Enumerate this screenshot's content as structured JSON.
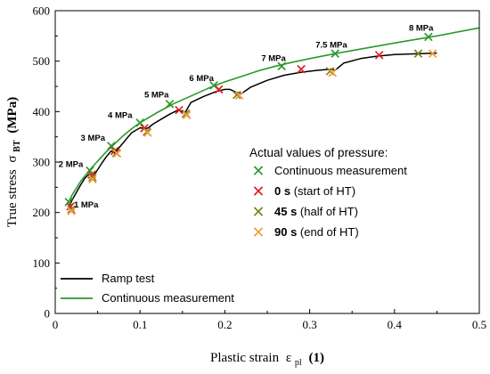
{
  "chart_data": {
    "type": "line",
    "xlabel": "Plastic strain",
    "xlabel_symbol": "ε",
    "xlabel_sub": "pl",
    "xlabel_unit": "(1)",
    "ylabel": "True stress",
    "ylabel_symbol": "σ",
    "ylabel_sub": "BT",
    "ylabel_unit": "(MPa)",
    "xlim": [
      0,
      0.5
    ],
    "ylim": [
      0,
      600
    ],
    "xticks": [
      0,
      0.1,
      0.2,
      0.3,
      0.4,
      0.5
    ],
    "xtick_labels": [
      "0",
      "0.1",
      "0.2",
      "0.3",
      "0.4",
      "0.5"
    ],
    "yticks": [
      0,
      100,
      200,
      300,
      400,
      500,
      600
    ],
    "ytick_labels": [
      "0",
      "100",
      "200",
      "300",
      "400",
      "500",
      "600"
    ],
    "colors": {
      "ramp": "#000000",
      "continuous": "#2a9a2a",
      "cont_marker": "#2e9a2e",
      "start": "#e02020",
      "half": "#7f7f22",
      "end": "#f59a3c"
    },
    "series": [
      {
        "name": "Ramp test",
        "kind": "line",
        "color": "#000000",
        "x": [
          0.016,
          0.02,
          0.025,
          0.03,
          0.035,
          0.041,
          0.045,
          0.05,
          0.055,
          0.06,
          0.066,
          0.07,
          0.075,
          0.08,
          0.085,
          0.09,
          0.1,
          0.106,
          0.11,
          0.115,
          0.125,
          0.135,
          0.145,
          0.15,
          0.153,
          0.16,
          0.175,
          0.19,
          0.2,
          0.206,
          0.214,
          0.22,
          0.23,
          0.25,
          0.27,
          0.29,
          0.31,
          0.325,
          0.33,
          0.34,
          0.36,
          0.38,
          0.4,
          0.43,
          0.45
        ],
        "y": [
          210,
          225,
          240,
          255,
          268,
          278,
          272,
          285,
          298,
          310,
          322,
          318,
          328,
          338,
          348,
          358,
          368,
          366,
          368,
          375,
          385,
          395,
          403,
          400,
          398,
          418,
          430,
          440,
          444,
          444,
          438,
          436,
          448,
          462,
          472,
          478,
          482,
          484,
          482,
          496,
          505,
          510,
          513,
          515,
          516
        ]
      },
      {
        "name": "Continuous measurement",
        "kind": "line",
        "color": "#2a9a2a",
        "x": [
          0.015,
          0.02,
          0.03,
          0.04,
          0.05,
          0.06,
          0.07,
          0.08,
          0.09,
          0.1,
          0.12,
          0.14,
          0.16,
          0.18,
          0.2,
          0.22,
          0.24,
          0.26,
          0.28,
          0.3,
          0.33,
          0.35,
          0.4,
          0.45,
          0.5
        ],
        "y": [
          218,
          235,
          262,
          283,
          302,
          320,
          336,
          352,
          366,
          378,
          398,
          416,
          431,
          446,
          459,
          470,
          481,
          490,
          498,
          505,
          515,
          521,
          536,
          550,
          566
        ]
      },
      {
        "name": "Continuous measurement",
        "kind": "marker",
        "color": "#2e9a2e",
        "x": [
          0.016,
          0.041,
          0.066,
          0.1,
          0.135,
          0.187,
          0.267,
          0.33,
          0.44
        ],
        "y": [
          221,
          283,
          332,
          378,
          415,
          452,
          490,
          515,
          548
        ]
      },
      {
        "name": "0 s (start of HT)",
        "kind": "marker",
        "color": "#e02020",
        "x": [
          0.018,
          0.043,
          0.07,
          0.105,
          0.146,
          0.193,
          0.29,
          0.382
        ],
        "y": [
          212,
          275,
          322,
          367,
          403,
          444,
          484,
          512
        ]
      },
      {
        "name": "45 s (half of HT)",
        "kind": "marker",
        "color": "#7f7f22",
        "x": [
          0.019,
          0.044,
          0.072,
          0.108,
          0.154,
          0.214,
          0.324,
          0.428
        ],
        "y": [
          206,
          270,
          318,
          360,
          396,
          433,
          480,
          515
        ]
      },
      {
        "name": "90 s (end of HT)",
        "kind": "marker",
        "color": "#f59a3c",
        "x": [
          0.019,
          0.044,
          0.073,
          0.109,
          0.155,
          0.217,
          0.327,
          0.445
        ],
        "y": [
          203,
          266,
          317,
          358,
          393,
          432,
          477,
          515
        ]
      }
    ],
    "annotations": [
      {
        "text": "1 MPa",
        "x": 0.022,
        "y": 210
      },
      {
        "text": "2 MPa",
        "x": 0.004,
        "y": 290
      },
      {
        "text": "3 MPa",
        "x": 0.03,
        "y": 342
      },
      {
        "text": "4 MPa",
        "x": 0.062,
        "y": 387
      },
      {
        "text": "5 MPa",
        "x": 0.105,
        "y": 428
      },
      {
        "text": "6 MPa",
        "x": 0.158,
        "y": 461
      },
      {
        "text": "7 MPa",
        "x": 0.243,
        "y": 500
      },
      {
        "text": "7.5 MPa",
        "x": 0.307,
        "y": 527
      },
      {
        "text": "8 MPa",
        "x": 0.417,
        "y": 560
      }
    ],
    "legend_markers": {
      "title": "Actual values of pressure:",
      "placement": "center-right",
      "entries": [
        {
          "prefix": "",
          "text": "Continuous measurement",
          "color": "#2e9a2e"
        },
        {
          "prefix": "0 s",
          "text": " (start of HT)",
          "color": "#e02020"
        },
        {
          "prefix": "45 s",
          "text": " (half of HT)",
          "color": "#7f7f22"
        },
        {
          "prefix": "90 s",
          "text": " (end of HT)",
          "color": "#f59a3c"
        }
      ]
    },
    "legend_lines": {
      "placement": "bottom-left",
      "entries": [
        {
          "text": "Ramp test",
          "color": "#000000"
        },
        {
          "text": "Continuous measurement",
          "color": "#2a9a2a"
        }
      ]
    }
  }
}
